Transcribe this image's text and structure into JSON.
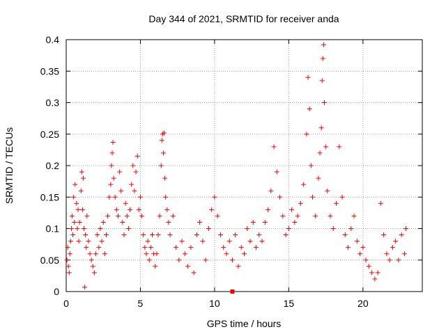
{
  "chart_data": {
    "type": "scatter",
    "title": "Day 344 of 2021, SRMTID for receiver anda",
    "xlabel": "GPS time / hours",
    "ylabel": "SRMTID / TECUs",
    "xlim": [
      0,
      24
    ],
    "ylim": [
      0,
      0.4
    ],
    "x_ticks": [
      0,
      5,
      10,
      15,
      20
    ],
    "x_tick_labels": [
      "0",
      "5",
      "10",
      "15",
      "20"
    ],
    "y_ticks": [
      0,
      0.05,
      0.1,
      0.15,
      0.2,
      0.25,
      0.3,
      0.35,
      0.4
    ],
    "y_tick_labels": [
      "0",
      "0.05",
      "0.1",
      "0.15",
      "0.2",
      "0.25",
      "0.3",
      "0.35",
      "0.4"
    ],
    "grid": true,
    "marker": "+",
    "color": "#ff0000",
    "series": [
      {
        "name": "SRMTID",
        "points": [
          [
            0.05,
            0.05
          ],
          [
            0.1,
            0.07
          ],
          [
            0.15,
            0.04
          ],
          [
            0.2,
            0.03
          ],
          [
            0.25,
            0.06
          ],
          [
            0.3,
            0.08
          ],
          [
            0.35,
            0.1
          ],
          [
            0.4,
            0.12
          ],
          [
            0.45,
            0.09
          ],
          [
            0.5,
            0.15
          ],
          [
            0.55,
            0.11
          ],
          [
            0.6,
            0.17
          ],
          [
            0.7,
            0.14
          ],
          [
            0.75,
            0.1
          ],
          [
            0.8,
            0.13
          ],
          [
            0.85,
            0.08
          ],
          [
            0.9,
            0.11
          ],
          [
            1.0,
            0.16
          ],
          [
            1.05,
            0.19
          ],
          [
            1.1,
            0.13
          ],
          [
            1.15,
            0.18
          ],
          [
            1.2,
            0.1
          ],
          [
            1.25,
            0.007
          ],
          [
            1.3,
            0.09
          ],
          [
            1.35,
            0.07
          ],
          [
            1.4,
            0.12
          ],
          [
            1.5,
            0.08
          ],
          [
            1.6,
            0.06
          ],
          [
            1.7,
            0.05
          ],
          [
            1.8,
            0.04
          ],
          [
            1.9,
            0.03
          ],
          [
            2.0,
            0.06
          ],
          [
            2.1,
            0.09
          ],
          [
            2.2,
            0.07
          ],
          [
            2.3,
            0.1
          ],
          [
            2.4,
            0.08
          ],
          [
            2.5,
            0.11
          ],
          [
            2.6,
            0.06
          ],
          [
            2.7,
            0.09
          ],
          [
            2.8,
            0.12
          ],
          [
            2.9,
            0.15
          ],
          [
            3.0,
            0.17
          ],
          [
            3.05,
            0.2
          ],
          [
            3.1,
            0.22
          ],
          [
            3.15,
            0.237
          ],
          [
            3.2,
            0.18
          ],
          [
            3.3,
            0.15
          ],
          [
            3.4,
            0.13
          ],
          [
            3.5,
            0.12
          ],
          [
            3.6,
            0.19
          ],
          [
            3.7,
            0.16
          ],
          [
            3.8,
            0.11
          ],
          [
            3.9,
            0.09
          ],
          [
            4.0,
            0.14
          ],
          [
            4.1,
            0.12
          ],
          [
            4.2,
            0.1
          ],
          [
            4.3,
            0.13
          ],
          [
            4.4,
            0.17
          ],
          [
            4.5,
            0.2
          ],
          [
            4.6,
            0.16
          ],
          [
            4.7,
            0.19
          ],
          [
            4.8,
            0.215
          ],
          [
            4.9,
            0.13
          ],
          [
            5.0,
            0.15
          ],
          [
            5.1,
            0.12
          ],
          [
            5.2,
            0.09
          ],
          [
            5.3,
            0.07
          ],
          [
            5.4,
            0.06
          ],
          [
            5.5,
            0.08
          ],
          [
            5.6,
            0.05
          ],
          [
            5.7,
            0.07
          ],
          [
            5.8,
            0.09
          ],
          [
            5.9,
            0.06
          ],
          [
            6.0,
            0.04
          ],
          [
            6.1,
            0.06
          ],
          [
            6.2,
            0.09
          ],
          [
            6.3,
            0.12
          ],
          [
            6.4,
            0.2
          ],
          [
            6.45,
            0.24
          ],
          [
            6.5,
            0.25
          ],
          [
            6.55,
            0.22
          ],
          [
            6.6,
            0.252
          ],
          [
            6.65,
            0.18
          ],
          [
            6.7,
            0.15
          ],
          [
            6.8,
            0.13
          ],
          [
            6.9,
            0.11
          ],
          [
            7.0,
            0.09
          ],
          [
            7.2,
            0.12
          ],
          [
            7.4,
            0.07
          ],
          [
            7.6,
            0.05
          ],
          [
            7.8,
            0.08
          ],
          [
            8.0,
            0.06
          ],
          [
            8.2,
            0.04
          ],
          [
            8.4,
            0.07
          ],
          [
            8.6,
            0.03
          ],
          [
            8.8,
            0.09
          ],
          [
            9.0,
            0.11
          ],
          [
            9.2,
            0.08
          ],
          [
            9.4,
            0.05
          ],
          [
            9.6,
            0.1
          ],
          [
            9.8,
            0.13
          ],
          [
            10.0,
            0.15
          ],
          [
            10.2,
            0.12
          ],
          [
            10.4,
            0.09
          ],
          [
            10.6,
            0.07
          ],
          [
            10.8,
            0.06
          ],
          [
            11.0,
            0.08
          ],
          [
            11.2,
            0.05
          ],
          [
            11.4,
            0.09
          ],
          [
            11.6,
            0.04
          ],
          [
            11.8,
            0.07
          ],
          [
            12.0,
            0.06
          ],
          [
            12.2,
            0.1
          ],
          [
            12.4,
            0.08
          ],
          [
            12.6,
            0.11
          ],
          [
            12.8,
            0.07
          ],
          [
            13.0,
            0.09
          ],
          [
            13.2,
            0.08
          ],
          [
            13.4,
            0.11
          ],
          [
            13.6,
            0.13
          ],
          [
            13.8,
            0.16
          ],
          [
            14.0,
            0.23
          ],
          [
            14.2,
            0.19
          ],
          [
            14.4,
            0.15
          ],
          [
            14.6,
            0.12
          ],
          [
            14.8,
            0.09
          ],
          [
            15.0,
            0.1
          ],
          [
            15.2,
            0.13
          ],
          [
            15.4,
            0.11
          ],
          [
            15.6,
            0.12
          ],
          [
            15.8,
            0.14
          ],
          [
            16.0,
            0.17
          ],
          [
            16.2,
            0.25
          ],
          [
            16.3,
            0.34
          ],
          [
            16.4,
            0.29
          ],
          [
            16.5,
            0.2
          ],
          [
            16.6,
            0.15
          ],
          [
            16.8,
            0.12
          ],
          [
            17.0,
            0.18
          ],
          [
            17.1,
            0.22
          ],
          [
            17.2,
            0.26
          ],
          [
            17.25,
            0.335
          ],
          [
            17.3,
            0.37
          ],
          [
            17.35,
            0.392
          ],
          [
            17.4,
            0.3
          ],
          [
            17.5,
            0.23
          ],
          [
            17.6,
            0.16
          ],
          [
            17.8,
            0.12
          ],
          [
            18.0,
            0.1
          ],
          [
            18.2,
            0.14
          ],
          [
            18.4,
            0.23
          ],
          [
            18.6,
            0.15
          ],
          [
            18.8,
            0.09
          ],
          [
            19.0,
            0.07
          ],
          [
            19.2,
            0.1
          ],
          [
            19.4,
            0.12
          ],
          [
            19.6,
            0.08
          ],
          [
            19.8,
            0.06
          ],
          [
            20.0,
            0.07
          ],
          [
            20.2,
            0.05
          ],
          [
            20.4,
            0.04
          ],
          [
            20.6,
            0.03
          ],
          [
            20.8,
            0.02
          ],
          [
            21.0,
            0.03
          ],
          [
            21.2,
            0.14
          ],
          [
            21.4,
            0.09
          ],
          [
            21.6,
            0.06
          ],
          [
            21.8,
            0.05
          ],
          [
            22.0,
            0.07
          ],
          [
            22.2,
            0.08
          ],
          [
            22.4,
            0.05
          ],
          [
            22.6,
            0.09
          ],
          [
            22.8,
            0.06
          ],
          [
            22.9,
            0.1
          ]
        ]
      }
    ],
    "special_marker": {
      "x": 11.2,
      "y": 0.0,
      "shape": "square"
    }
  }
}
